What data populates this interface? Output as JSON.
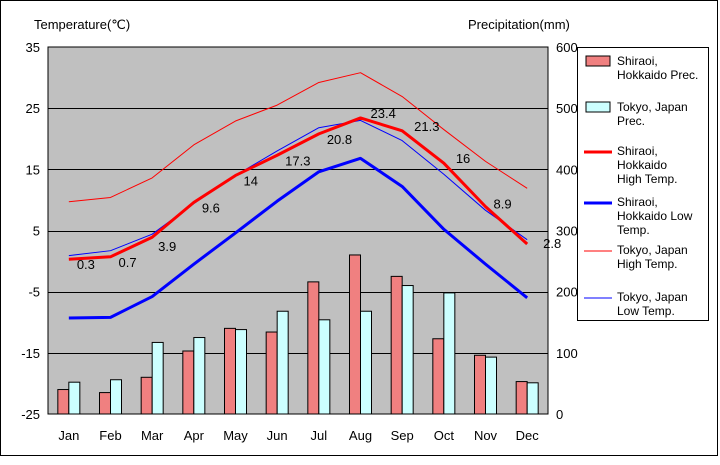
{
  "chart_data": {
    "type": "bar+line",
    "left_axis": {
      "label": "Temperature(℃)",
      "min": -25,
      "max": 35,
      "ticks": [
        35,
        25,
        15,
        5,
        -5,
        -15,
        -25
      ]
    },
    "right_axis": {
      "label": "Precipitation(mm)",
      "min": 0,
      "max": 600,
      "ticks": [
        600,
        500,
        400,
        300,
        200,
        100,
        0
      ]
    },
    "categories": [
      "Jan",
      "Feb",
      "Mar",
      "Apr",
      "May",
      "Jun",
      "Jul",
      "Aug",
      "Sep",
      "Oct",
      "Nov",
      "Dec"
    ],
    "bar_series": [
      {
        "name": "Shiraoi, Hokkaido Prec.",
        "color": "#f08080",
        "values": [
          40,
          35,
          60,
          103,
          140,
          134,
          216,
          260,
          225,
          123,
          96,
          53
        ]
      },
      {
        "name": "Tokyo, Japan Prec.",
        "color": "#ccffff",
        "values": [
          52,
          56,
          117,
          125,
          138,
          168,
          154,
          168,
          210,
          198,
          93,
          51
        ]
      }
    ],
    "line_series": [
      {
        "name": "Shiraoi, Hokkaido High Temp.",
        "color": "#ff0000",
        "width": 3,
        "values": [
          0.3,
          0.7,
          3.9,
          9.6,
          14,
          17.3,
          20.8,
          23.4,
          21.3,
          16,
          8.9,
          2.8
        ],
        "labels": [
          "0.3",
          "0.7",
          "3.9",
          "9.6",
          "14",
          "17.3",
          "20.8",
          "23.4",
          "21.3",
          "16",
          "8.9",
          "2.8"
        ]
      },
      {
        "name": "Shiraoi, Hokkaido Low Temp.",
        "color": "#0000ff",
        "width": 3,
        "values": [
          -9.3,
          -9.2,
          -5.8,
          -0.5,
          4.6,
          9.8,
          14.6,
          16.8,
          12.2,
          5.2,
          -0.5,
          -6
        ]
      },
      {
        "name": "Tokyo, Japan High Temp.",
        "color": "#ff0000",
        "width": 1,
        "values": [
          9.7,
          10.4,
          13.6,
          19,
          22.9,
          25.5,
          29.2,
          30.8,
          26.9,
          21.5,
          16.3,
          11.9
        ]
      },
      {
        "name": "Tokyo, Japan Low Temp.",
        "color": "#0000ff",
        "width": 1,
        "values": [
          0.9,
          1.7,
          4.4,
          9.4,
          14,
          18,
          21.8,
          23,
          19.7,
          14.2,
          8.3,
          3.5
        ]
      }
    ],
    "legend_position": "right",
    "grid": true
  },
  "legend": [
    {
      "lines": [
        "Shiraoi,",
        "Hokkaido Prec."
      ],
      "kind": "bar",
      "color": "#f08080"
    },
    {
      "lines": [
        "Tokyo, Japan",
        "Prec."
      ],
      "kind": "bar",
      "color": "#ccffff"
    },
    {
      "lines": [
        "Shiraoi,",
        "Hokkaido",
        "High Temp."
      ],
      "kind": "line",
      "color": "#ff0000",
      "width": 3
    },
    {
      "lines": [
        "Shiraoi,",
        "Hokkaido Low",
        "Temp."
      ],
      "kind": "line",
      "color": "#0000ff",
      "width": 3
    },
    {
      "lines": [
        "Tokyo, Japan",
        "High Temp."
      ],
      "kind": "line",
      "color": "#ff0000",
      "width": 1
    },
    {
      "lines": [
        "Tokyo, Japan",
        "Low Temp."
      ],
      "kind": "line",
      "color": "#0000ff",
      "width": 1
    }
  ],
  "colors": {
    "plot_bg": "#c0c0c0",
    "grid": "#000000"
  }
}
